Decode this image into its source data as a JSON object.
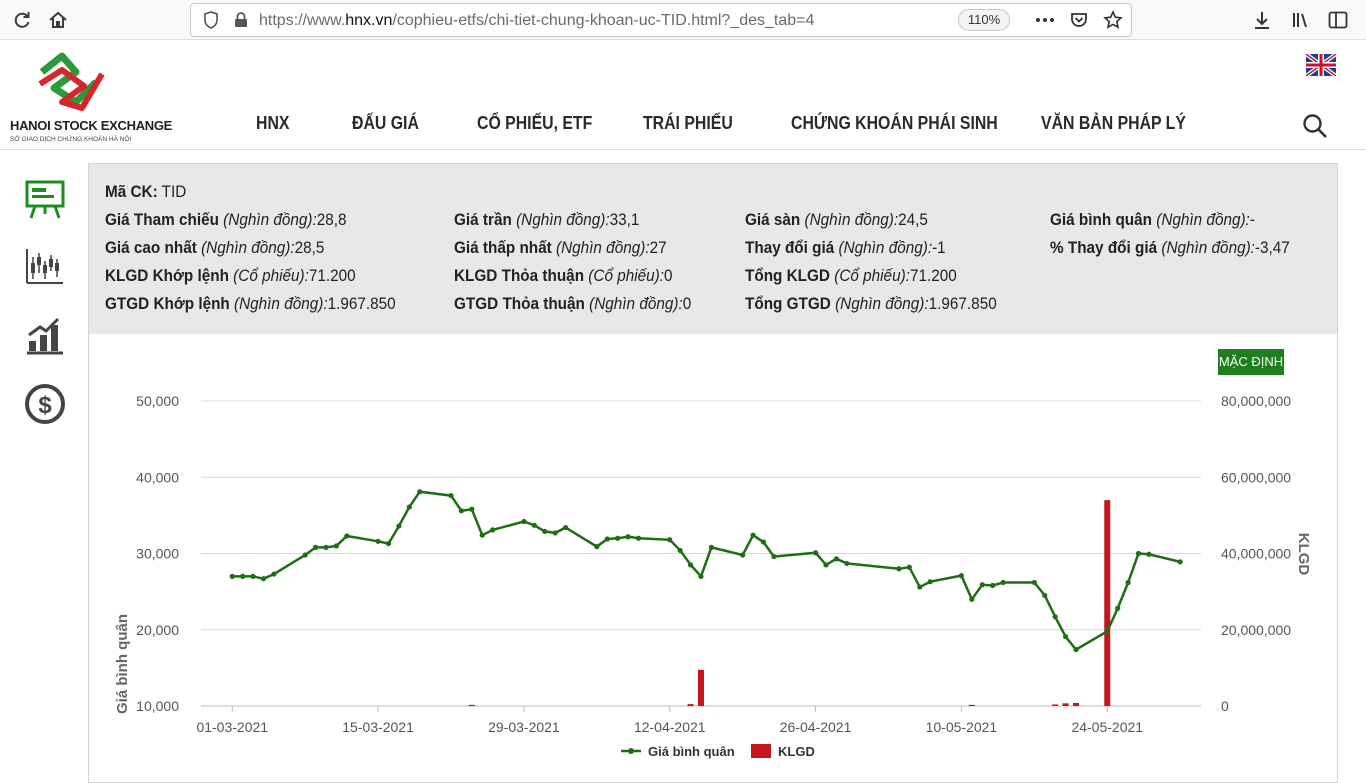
{
  "browser": {
    "url_prefix": "https://www.",
    "url_domain": "hnx.vn",
    "url_path": "/cophieu-etfs/chi-tiet-chung-khoan-uc-TID.html?_des_tab=4",
    "zoom": "110%"
  },
  "site": {
    "logo_name": "HANOI STOCK EXCHANGE",
    "logo_sub": "SỞ GIAO DỊCH CHỨNG KHOÁN HÀ NỘI",
    "nav": [
      "HNX",
      "ĐẤU GIÁ",
      "CỔ PHIẾU, ETF",
      "TRÁI PHIẾU",
      "CHỨNG KHOÁN PHÁI SINH",
      "VĂN BẢN PHÁP LÝ"
    ]
  },
  "info": {
    "code_label": "Mã CK:",
    "code_value": "TID",
    "rows": [
      [
        {
          "label": "Giá Tham chiếu",
          "unit": "(Nghìn đồng):",
          "value": "28,8"
        },
        {
          "label": "Giá trần",
          "unit": "(Nghìn đồng):",
          "value": "33,1"
        },
        {
          "label": "Giá sàn",
          "unit": "(Nghìn đồng):",
          "value": "24,5"
        },
        {
          "label": "Giá bình quân",
          "unit": "(Nghìn đồng):",
          "value": "-"
        }
      ],
      [
        {
          "label": "Giá cao nhất",
          "unit": "(Nghìn đồng):",
          "value": "28,5"
        },
        {
          "label": "Giá thấp nhất",
          "unit": "(Nghìn đồng):",
          "value": "27"
        },
        {
          "label": "Thay đổi giá",
          "unit": "(Nghìn đồng):",
          "value": "-1"
        },
        {
          "label": "% Thay đổi giá",
          "unit": "(Nghìn đồng):",
          "value": "-3,47"
        }
      ],
      [
        {
          "label": "KLGD Khớp lệnh",
          "unit": "(Cổ phiếu):",
          "value": "71.200"
        },
        {
          "label": "KLGD Thỏa thuận",
          "unit": "(Cổ phiếu):",
          "value": "0"
        },
        {
          "label": "Tổng KLGD",
          "unit": "(Cổ phiếu):",
          "value": "71.200"
        }
      ],
      [
        {
          "label": "GTGD Khớp lệnh",
          "unit": "(Nghìn đồng):",
          "value": "1.967.850"
        },
        {
          "label": "GTGD Thỏa thuận",
          "unit": "(Nghìn đồng):",
          "value": "0"
        },
        {
          "label": "Tổng GTGD",
          "unit": "(Nghìn đồng):",
          "value": "1.967.850"
        }
      ]
    ]
  },
  "default_button": "MẶC ĐỊNH",
  "colors": {
    "line": "#1f6e16",
    "bar": "#c4161c",
    "accent": "#1e7f1e"
  },
  "chart_data": {
    "type": "line",
    "xlabel": "",
    "ylabel": "Giá bình quân",
    "y2label": "KLGD",
    "ylim": [
      10000,
      50000
    ],
    "y2lim": [
      0,
      80000000
    ],
    "y_ticks": [
      "50,000",
      "40,000",
      "30,000",
      "20,000",
      "10,000"
    ],
    "y2_ticks": [
      "80,000,000",
      "60,000,000",
      "40,000,000",
      "20,000,000",
      "0"
    ],
    "x_ticks": [
      "01-03-2021",
      "15-03-2021",
      "29-03-2021",
      "12-04-2021",
      "26-04-2021",
      "10-05-2021",
      "24-05-2021"
    ],
    "series": [
      {
        "name": "Giá bình quân",
        "values": [
          {
            "x": "2021-03-01",
            "y": 27000
          },
          {
            "x": "2021-03-02",
            "y": 27000
          },
          {
            "x": "2021-03-03",
            "y": 27000
          },
          {
            "x": "2021-03-04",
            "y": 26700
          },
          {
            "x": "2021-03-05",
            "y": 27300
          },
          {
            "x": "2021-03-08",
            "y": 29800
          },
          {
            "x": "2021-03-09",
            "y": 30800
          },
          {
            "x": "2021-03-10",
            "y": 30800
          },
          {
            "x": "2021-03-11",
            "y": 31000
          },
          {
            "x": "2021-03-12",
            "y": 32300
          },
          {
            "x": "2021-03-15",
            "y": 31600
          },
          {
            "x": "2021-03-16",
            "y": 31300
          },
          {
            "x": "2021-03-17",
            "y": 33600
          },
          {
            "x": "2021-03-18",
            "y": 36100
          },
          {
            "x": "2021-03-19",
            "y": 38100
          },
          {
            "x": "2021-03-22",
            "y": 37600
          },
          {
            "x": "2021-03-23",
            "y": 35600
          },
          {
            "x": "2021-03-24",
            "y": 35800
          },
          {
            "x": "2021-03-25",
            "y": 32400
          },
          {
            "x": "2021-03-26",
            "y": 33100
          },
          {
            "x": "2021-03-29",
            "y": 34200
          },
          {
            "x": "2021-03-30",
            "y": 33700
          },
          {
            "x": "2021-03-31",
            "y": 32900
          },
          {
            "x": "2021-04-01",
            "y": 32700
          },
          {
            "x": "2021-04-02",
            "y": 33400
          },
          {
            "x": "2021-04-05",
            "y": 30900
          },
          {
            "x": "2021-04-06",
            "y": 31900
          },
          {
            "x": "2021-04-07",
            "y": 32000
          },
          {
            "x": "2021-04-08",
            "y": 32200
          },
          {
            "x": "2021-04-09",
            "y": 32000
          },
          {
            "x": "2021-04-12",
            "y": 31800
          },
          {
            "x": "2021-04-13",
            "y": 30400
          },
          {
            "x": "2021-04-14",
            "y": 28500
          },
          {
            "x": "2021-04-15",
            "y": 27000
          },
          {
            "x": "2021-04-16",
            "y": 30800
          },
          {
            "x": "2021-04-19",
            "y": 29800
          },
          {
            "x": "2021-04-20",
            "y": 32400
          },
          {
            "x": "2021-04-21",
            "y": 31500
          },
          {
            "x": "2021-04-22",
            "y": 29600
          },
          {
            "x": "2021-04-26",
            "y": 30100
          },
          {
            "x": "2021-04-27",
            "y": 28500
          },
          {
            "x": "2021-04-28",
            "y": 29300
          },
          {
            "x": "2021-04-29",
            "y": 28700
          },
          {
            "x": "2021-05-04",
            "y": 28000
          },
          {
            "x": "2021-05-05",
            "y": 28200
          },
          {
            "x": "2021-05-06",
            "y": 25600
          },
          {
            "x": "2021-05-07",
            "y": 26300
          },
          {
            "x": "2021-05-10",
            "y": 27100
          },
          {
            "x": "2021-05-11",
            "y": 24000
          },
          {
            "x": "2021-05-12",
            "y": 25900
          },
          {
            "x": "2021-05-13",
            "y": 25800
          },
          {
            "x": "2021-05-14",
            "y": 26200
          },
          {
            "x": "2021-05-17",
            "y": 26200
          },
          {
            "x": "2021-05-18",
            "y": 24500
          },
          {
            "x": "2021-05-19",
            "y": 21700
          },
          {
            "x": "2021-05-20",
            "y": 19100
          },
          {
            "x": "2021-05-21",
            "y": 17400
          },
          {
            "x": "2021-05-24",
            "y": 19800
          },
          {
            "x": "2021-05-25",
            "y": 22800
          },
          {
            "x": "2021-05-26",
            "y": 26200
          },
          {
            "x": "2021-05-27",
            "y": 30000
          },
          {
            "x": "2021-05-28",
            "y": 29900
          },
          {
            "x": "2021-05-31",
            "y": 28900
          }
        ]
      },
      {
        "name": "KLGD",
        "type": "bar",
        "values": [
          {
            "x": "2021-03-24",
            "y": 300000
          },
          {
            "x": "2021-04-14",
            "y": 500000
          },
          {
            "x": "2021-04-15",
            "y": 9500000
          },
          {
            "x": "2021-05-11",
            "y": 300000
          },
          {
            "x": "2021-05-19",
            "y": 400000
          },
          {
            "x": "2021-05-20",
            "y": 700000
          },
          {
            "x": "2021-05-21",
            "y": 800000
          },
          {
            "x": "2021-05-24",
            "y": 54000000
          }
        ]
      }
    ]
  }
}
